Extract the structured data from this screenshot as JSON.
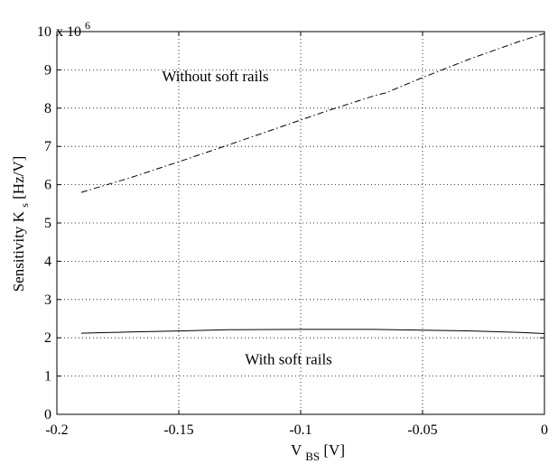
{
  "chart_data": {
    "type": "line",
    "title": "",
    "xlabel": {
      "main": "V",
      "sub": "BS",
      "unit": " [V]"
    },
    "ylabel": {
      "main": "Sensitivity K",
      "sub": "s",
      "unit": " [Hz/V]"
    },
    "y_multiplier": {
      "base": "x 10",
      "exp": "6"
    },
    "xlim": [
      -0.2,
      0
    ],
    "ylim": [
      0,
      10
    ],
    "x_ticks": [
      -0.2,
      -0.15,
      -0.1,
      -0.05,
      0
    ],
    "x_tick_labels": [
      "-0.2",
      "-0.15",
      "-0.1",
      "-0.05",
      "0"
    ],
    "y_ticks": [
      0,
      1,
      2,
      3,
      4,
      5,
      6,
      7,
      8,
      9,
      10
    ],
    "y_tick_labels": [
      "0",
      "1",
      "2",
      "3",
      "4",
      "5",
      "6",
      "7",
      "8",
      "9",
      "10"
    ],
    "grid": true,
    "series": [
      {
        "style": "dash-dot",
        "color": "#000000",
        "x": [
          -0.19,
          -0.17,
          -0.15,
          -0.13,
          -0.11,
          -0.09,
          -0.07,
          -0.065,
          -0.05,
          -0.03,
          -0.01,
          0
        ],
        "y": [
          5.8,
          6.18,
          6.6,
          7.03,
          7.47,
          7.91,
          8.32,
          8.4,
          8.8,
          9.3,
          9.75,
          9.95
        ]
      },
      {
        "style": "solid",
        "color": "#000000",
        "x": [
          -0.19,
          -0.17,
          -0.15,
          -0.13,
          -0.1,
          -0.07,
          -0.05,
          -0.03,
          -0.01,
          0
        ],
        "y": [
          2.12,
          2.15,
          2.18,
          2.21,
          2.22,
          2.22,
          2.2,
          2.18,
          2.14,
          2.11
        ]
      }
    ],
    "annotations": [
      {
        "text": "Without soft rails",
        "x": -0.135,
        "y": 8.85
      },
      {
        "text": "With soft rails",
        "x": -0.105,
        "y": 1.45
      }
    ]
  }
}
